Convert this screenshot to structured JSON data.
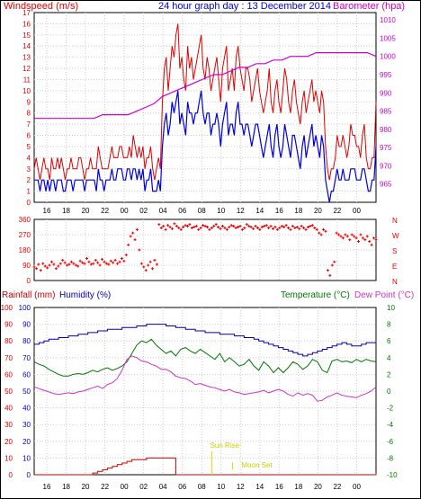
{
  "title": "24 hour graph day : 13 December 2014",
  "colors": {
    "wind": "#e00000",
    "gust": "#e00000",
    "avg": "#0000dd",
    "baro": "#cc00cc",
    "dir": "#ee0000",
    "rain": "#cc0000",
    "hum": "#0000aa",
    "temp": "#007700",
    "dew": "#cc33cc",
    "sun": "#dddd00",
    "grid": "#cccccc"
  },
  "chart_data": [
    {
      "type": "line",
      "name": "wind-baro",
      "left_label": "Windspeed (m/s)",
      "right_label": "Barometer (hpa)",
      "x_ticks": [
        "16",
        "18",
        "20",
        "22",
        "00",
        "02",
        "04",
        "06",
        "08",
        "10",
        "12",
        "14",
        "16",
        "18",
        "20",
        "22",
        "00"
      ],
      "ylim_left": [
        0,
        17
      ],
      "ylim_right": [
        960,
        1012
      ],
      "y_ticks_left": [
        "0",
        "1",
        "2",
        "3",
        "4",
        "5",
        "6",
        "7",
        "8",
        "9",
        "10",
        "11",
        "12",
        "13",
        "14",
        "15",
        "16",
        "17"
      ],
      "y_ticks_right": [
        "965",
        "970",
        "975",
        "980",
        "985",
        "990",
        "995",
        "1000",
        "1005",
        "1010"
      ],
      "series": [
        {
          "name": "gust",
          "values": [
            3,
            4,
            3,
            2,
            3,
            4,
            3,
            3,
            2,
            4,
            3,
            3,
            4,
            3,
            4,
            3,
            2,
            3,
            3,
            4,
            3,
            3,
            3,
            4,
            4,
            3,
            2,
            3,
            3,
            4,
            3,
            3,
            3,
            5,
            4,
            3,
            3,
            3,
            3,
            4,
            5,
            4,
            4,
            4,
            5,
            5,
            4,
            4,
            4,
            5,
            4,
            6,
            5,
            4,
            5,
            4,
            5,
            3,
            4,
            4,
            5,
            3,
            2,
            3,
            4,
            3,
            9,
            12,
            13,
            10,
            12,
            14,
            13,
            15,
            16,
            12,
            13,
            11,
            10,
            14,
            12,
            13,
            11,
            12,
            13,
            14,
            15,
            12,
            11,
            13,
            12,
            10,
            11,
            12,
            13,
            11,
            9,
            12,
            13,
            14,
            10,
            11,
            12,
            10,
            13,
            14,
            12,
            11,
            10,
            12,
            12,
            11,
            9,
            10,
            11,
            12,
            10,
            9,
            8,
            9,
            10,
            12,
            9,
            8,
            10,
            11,
            9,
            8,
            10,
            12,
            11,
            9,
            8,
            10,
            11,
            9,
            8,
            7,
            9,
            10,
            8,
            9,
            10,
            11,
            9,
            10,
            9,
            8,
            10,
            9,
            5,
            3,
            2,
            3,
            3,
            4,
            6,
            5,
            5,
            6,
            5,
            4,
            5,
            7,
            6,
            6,
            5,
            5,
            4,
            6,
            7,
            4,
            3,
            3,
            4,
            4,
            9
          ]
        },
        {
          "name": "avg",
          "values": [
            2,
            2,
            2,
            1,
            2,
            2,
            1,
            2,
            1,
            2,
            2,
            1,
            2,
            2,
            2,
            1,
            1,
            2,
            2,
            2,
            1,
            2,
            2,
            2,
            2,
            2,
            1,
            2,
            2,
            2,
            2,
            2,
            1,
            3,
            2,
            2,
            1,
            2,
            2,
            2,
            3,
            2,
            2,
            3,
            3,
            3,
            2,
            2,
            3,
            3,
            2,
            3,
            3,
            2,
            3,
            2,
            3,
            1,
            2,
            2,
            3,
            1,
            1,
            1,
            2,
            1,
            5,
            7,
            8,
            6,
            7,
            9,
            8,
            9,
            10,
            7,
            8,
            7,
            6,
            9,
            8,
            8,
            7,
            8,
            8,
            9,
            10,
            8,
            7,
            8,
            8,
            6,
            7,
            7,
            8,
            7,
            5,
            7,
            8,
            9,
            6,
            7,
            7,
            6,
            8,
            9,
            7,
            7,
            6,
            7,
            7,
            6,
            5,
            6,
            7,
            7,
            6,
            5,
            4,
            5,
            6,
            7,
            5,
            4,
            6,
            7,
            5,
            4,
            5,
            7,
            6,
            5,
            4,
            6,
            6,
            5,
            4,
            3,
            5,
            6,
            4,
            5,
            6,
            7,
            5,
            6,
            5,
            4,
            6,
            5,
            2,
            1,
            0,
            1,
            1,
            2,
            3,
            2,
            2,
            3,
            2,
            2,
            2,
            3,
            3,
            3,
            2,
            2,
            2,
            3,
            3,
            2,
            1,
            1,
            2,
            2,
            5
          ]
        },
        {
          "name": "barometer",
          "values": [
            983,
            983,
            983,
            983,
            983,
            983,
            983,
            983,
            984,
            984,
            984,
            984,
            985,
            986,
            987,
            989,
            990,
            991,
            992,
            993,
            994,
            995,
            995,
            996,
            997,
            997,
            998,
            998,
            999,
            999,
            1000,
            1000,
            1000,
            1001,
            1001,
            1001,
            1001,
            1001,
            1001,
            1001,
            1000
          ]
        }
      ]
    },
    {
      "type": "scatter",
      "name": "wind-direction",
      "ylim": [
        0,
        360
      ],
      "y_ticks": [
        "0",
        "90",
        "180",
        "270",
        "360"
      ],
      "compass": [
        "N",
        "W",
        "S",
        "E",
        "N"
      ],
      "values": [
        80,
        70,
        95,
        60,
        100,
        85,
        75,
        90,
        110,
        95,
        70,
        85,
        100,
        120,
        105,
        90,
        95,
        110,
        100,
        90,
        85,
        115,
        105,
        100,
        130,
        110,
        95,
        100,
        120,
        105,
        90,
        125,
        110,
        100,
        95,
        115,
        105,
        120,
        100,
        110,
        130,
        115,
        150,
        210,
        260,
        280,
        240,
        300,
        180,
        100,
        80,
        60,
        90,
        110,
        70,
        120,
        95,
        330,
        310,
        320,
        300,
        325,
        315,
        305,
        335,
        320,
        310,
        300,
        315,
        325,
        320,
        330,
        310,
        315,
        320,
        300,
        310,
        325,
        320,
        315,
        300,
        310,
        320,
        330,
        315,
        305,
        320,
        310,
        300,
        315,
        325,
        320,
        310,
        315,
        320,
        300,
        310,
        330,
        320,
        315,
        305,
        320,
        310,
        300,
        315,
        320,
        325,
        310,
        320,
        305,
        315,
        300,
        310,
        320,
        315,
        325,
        310,
        300,
        320,
        310,
        315,
        305,
        320,
        310,
        300,
        315,
        320,
        325,
        310,
        300,
        280,
        270,
        300,
        290,
        60,
        30,
        90,
        110,
        280,
        270,
        260,
        250,
        270,
        260,
        240,
        270,
        260,
        250,
        230,
        270,
        250,
        240,
        260,
        230,
        210,
        250,
        240
      ]
    },
    {
      "type": "line",
      "name": "rain-hum-temp",
      "left_label_1": "Rainfall (mm)",
      "left_label_2": "Humidity (%)",
      "right_label_1": "Temperature (°C)",
      "right_label_2": "Dew Point (°C)",
      "ylim_rain": [
        0,
        100
      ],
      "ylim_hum": [
        0,
        100
      ],
      "ylim_temp": [
        -10,
        10
      ],
      "y_ticks_rain": [
        "0",
        "10",
        "20",
        "30",
        "40",
        "50",
        "60",
        "70",
        "80",
        "90",
        "100"
      ],
      "y_ticks_hum": [
        "0",
        "10",
        "20",
        "30",
        "40",
        "50",
        "60",
        "70",
        "80",
        "90",
        "100"
      ],
      "y_ticks_temp": [
        "-10",
        "-8",
        "-6",
        "-4",
        "-2",
        "0",
        "2",
        "4",
        "6",
        "8",
        "10"
      ],
      "annotations": [
        "Sun Rise",
        "Moon Set"
      ],
      "series": [
        {
          "name": "humidity",
          "values": [
            78,
            79,
            80,
            81,
            81,
            82,
            82,
            83,
            83,
            84,
            84,
            85,
            85,
            86,
            86,
            87,
            87,
            87,
            88,
            88,
            88,
            89,
            89,
            90,
            90,
            90,
            90,
            89,
            89,
            88,
            88,
            87,
            87,
            86,
            86,
            85,
            85,
            85,
            84,
            84,
            84,
            83,
            83,
            82,
            82,
            81,
            80,
            79,
            78,
            77,
            76,
            75,
            74,
            73,
            72,
            71,
            72,
            73,
            74,
            75,
            76,
            77,
            78,
            79,
            78,
            77,
            77,
            78,
            79,
            79,
            80
          ]
        },
        {
          "name": "rainfall",
          "values": [
            0,
            0,
            0,
            0,
            0,
            0,
            0,
            0,
            0,
            0,
            0,
            0,
            1,
            2,
            3,
            4,
            5,
            6,
            7,
            8,
            9,
            9,
            9,
            10,
            10,
            10,
            10,
            10,
            10,
            0,
            0,
            0,
            0,
            0,
            0,
            0,
            0,
            0,
            0,
            0,
            0,
            0,
            0,
            0,
            0,
            0,
            0,
            0,
            0,
            0,
            0,
            0,
            0,
            0,
            0,
            0,
            0,
            0,
            0,
            0,
            0,
            0,
            0,
            0,
            0,
            0,
            0,
            0,
            0,
            0,
            1
          ]
        },
        {
          "name": "temperature",
          "values": [
            3.5,
            3.2,
            3.0,
            2.6,
            2.3,
            2.0,
            1.8,
            1.8,
            2.0,
            2.1,
            2.0,
            2.2,
            2.5,
            2.3,
            2.6,
            2.8,
            2.5,
            2.7,
            3.0,
            3.5,
            4.5,
            5.5,
            6.0,
            5.8,
            6.2,
            5.5,
            5.0,
            4.5,
            4.8,
            4.2,
            5.0,
            5.2,
            4.8,
            4.5,
            5.0,
            4.6,
            4.2,
            3.8,
            4.5,
            3.5,
            4.0,
            3.5,
            3.0,
            3.2,
            3.8,
            3.0,
            2.5,
            3.5,
            3.0,
            2.2,
            2.8,
            2.2,
            2.8,
            3.5,
            3.2,
            2.6,
            3.0,
            3.8,
            3.5,
            2.5,
            2.2,
            3.6,
            3.8,
            3.5,
            3.6,
            3.4,
            3.8,
            3.5,
            3.8,
            3.6,
            3.5
          ]
        },
        {
          "name": "dew_point",
          "values": [
            0.5,
            0.3,
            0.1,
            -0.1,
            -0.3,
            -0.4,
            -0.3,
            -0.2,
            -0.3,
            -0.1,
            0.0,
            0.2,
            0.4,
            0.6,
            0.3,
            0.8,
            1.0,
            1.5,
            2.5,
            3.8,
            4.2,
            4.0,
            3.6,
            3.5,
            3.2,
            3.0,
            2.6,
            2.6,
            2.3,
            1.8,
            1.6,
            1.5,
            1.2,
            0.8,
            0.9,
            0.7,
            0.5,
            0.4,
            0.2,
            0.0,
            0.2,
            -0.1,
            -0.2,
            -0.4,
            -0.3,
            -0.2,
            -0.1,
            0.1,
            -0.2,
            0.0,
            0.2,
            0.0,
            -0.4,
            -0.6,
            -0.2,
            -0.5,
            -0.3,
            -0.5,
            -1.2,
            -1.1,
            -0.7,
            -0.5,
            -0.2,
            -0.5,
            -0.6,
            -0.7,
            -0.8,
            -0.5,
            -0.3,
            0.0,
            0.5
          ]
        }
      ]
    }
  ]
}
